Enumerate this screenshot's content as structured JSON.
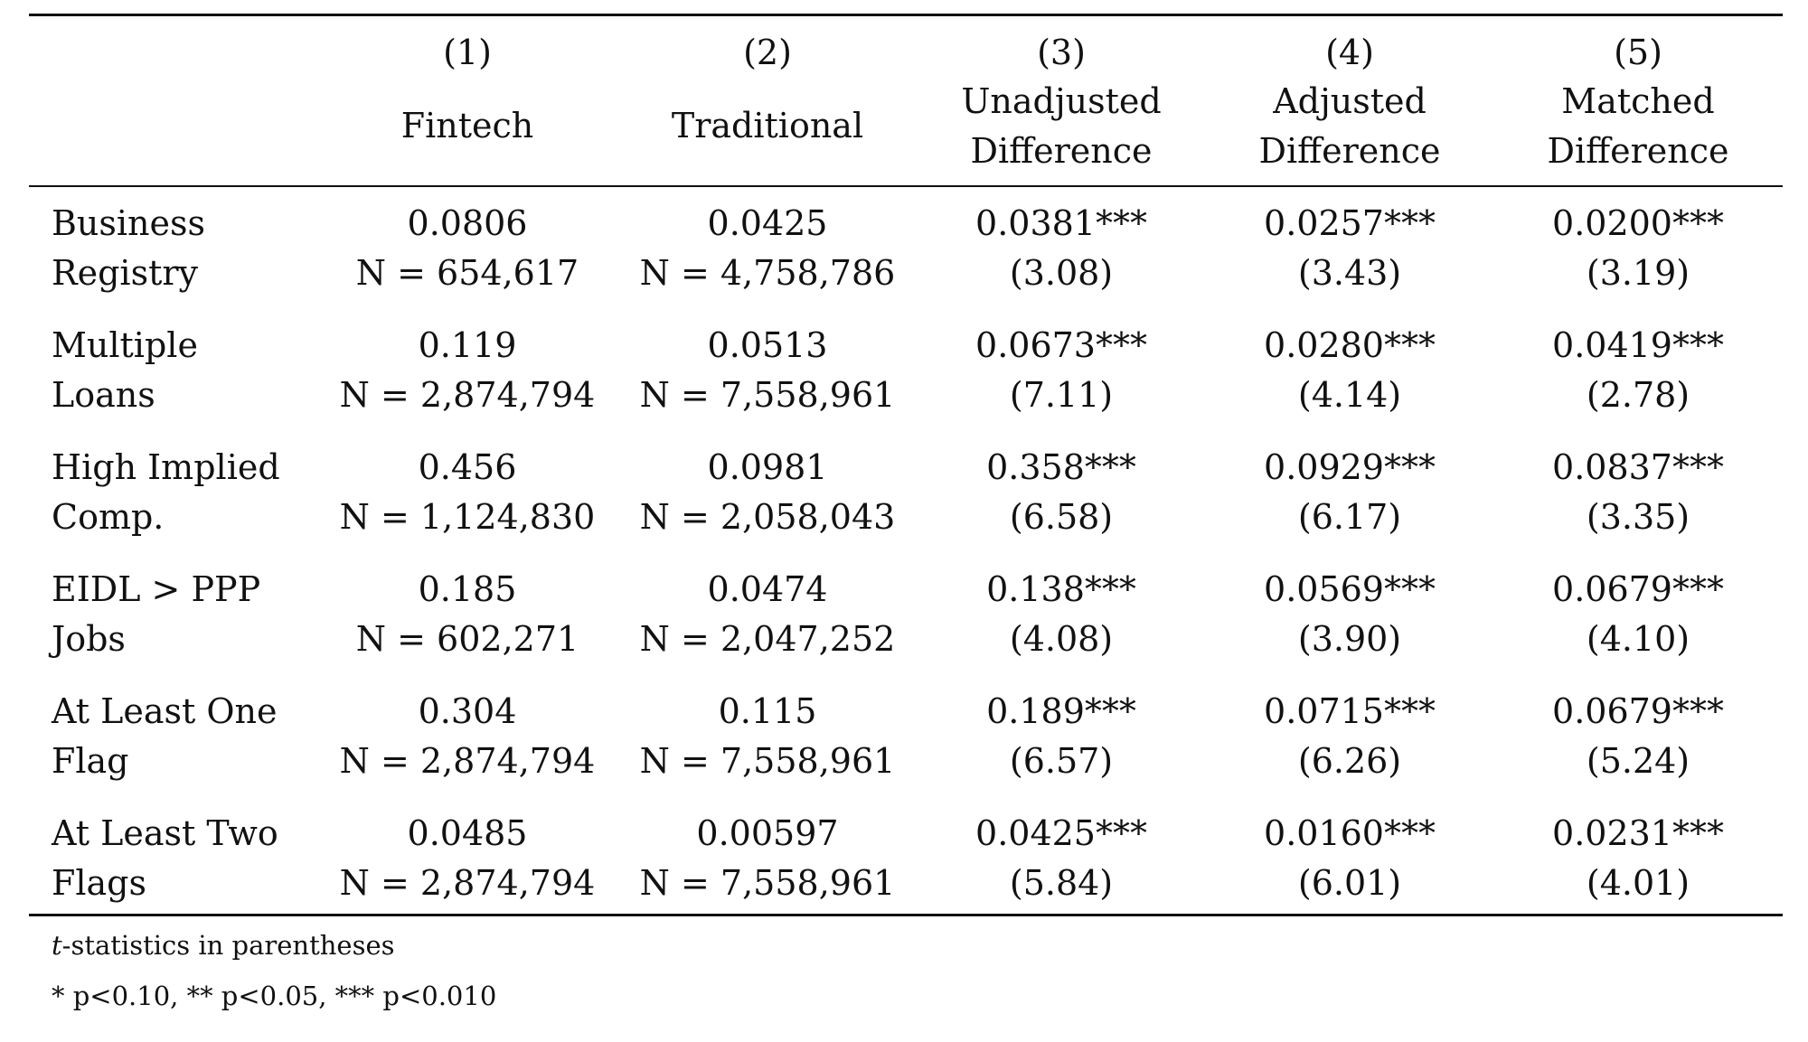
{
  "columns": [
    {
      "number": "(1)",
      "label_line1": "",
      "label_line2": "Fintech"
    },
    {
      "number": "(2)",
      "label_line1": "",
      "label_line2": "Traditional"
    },
    {
      "number": "(3)",
      "label_line1": "Unadjusted",
      "label_line2": "Difference"
    },
    {
      "number": "(4)",
      "label_line1": "Adjusted",
      "label_line2": "Difference"
    },
    {
      "number": "(5)",
      "label_line1": "Matched",
      "label_line2": "Difference"
    }
  ],
  "rows": [
    {
      "label_line1": "Business",
      "label_line2": "Registry",
      "values": [
        "0.0806",
        "0.0425",
        "0.0381***",
        "0.0257***",
        "0.0200***"
      ],
      "subs": [
        "N = 654,617",
        "N = 4,758,786",
        "(3.08)",
        "(3.43)",
        "(3.19)"
      ]
    },
    {
      "label_line1": "Multiple",
      "label_line2": "Loans",
      "values": [
        "0.119",
        "0.0513",
        "0.0673***",
        "0.0280***",
        "0.0419***"
      ],
      "subs": [
        "N = 2,874,794",
        "N = 7,558,961",
        "(7.11)",
        "(4.14)",
        "(2.78)"
      ]
    },
    {
      "label_line1": "High Implied",
      "label_line2": "Comp.",
      "values": [
        "0.456",
        "0.0981",
        "0.358***",
        "0.0929***",
        "0.0837***"
      ],
      "subs": [
        "N = 1,124,830",
        "N = 2,058,043",
        "(6.58)",
        "(6.17)",
        "(3.35)"
      ]
    },
    {
      "label_line1": "EIDL > PPP",
      "label_line2": "Jobs",
      "values": [
        "0.185",
        "0.0474",
        "0.138***",
        "0.0569***",
        "0.0679***"
      ],
      "subs": [
        "N = 602,271",
        "N = 2,047,252",
        "(4.08)",
        "(3.90)",
        "(4.10)"
      ]
    },
    {
      "label_line1": "At Least One",
      "label_line2": "Flag",
      "values": [
        "0.304",
        "0.115",
        "0.189***",
        "0.0715***",
        "0.0679***"
      ],
      "subs": [
        "N = 2,874,794",
        "N = 7,558,961",
        "(6.57)",
        "(6.26)",
        "(5.24)"
      ]
    },
    {
      "label_line1": "At Least Two",
      "label_line2": "Flags",
      "values": [
        "0.0485",
        "0.00597",
        "0.0425***",
        "0.0160***",
        "0.0231***"
      ],
      "subs": [
        "N = 2,874,794",
        "N = 7,558,961",
        "(5.84)",
        "(6.01)",
        "(4.01)"
      ]
    }
  ],
  "notes": {
    "tstat_italic": "t",
    "tstat_rest": "-statistics in parentheses",
    "significance": "* p<0.10, ** p<0.05, *** p<0.010"
  }
}
